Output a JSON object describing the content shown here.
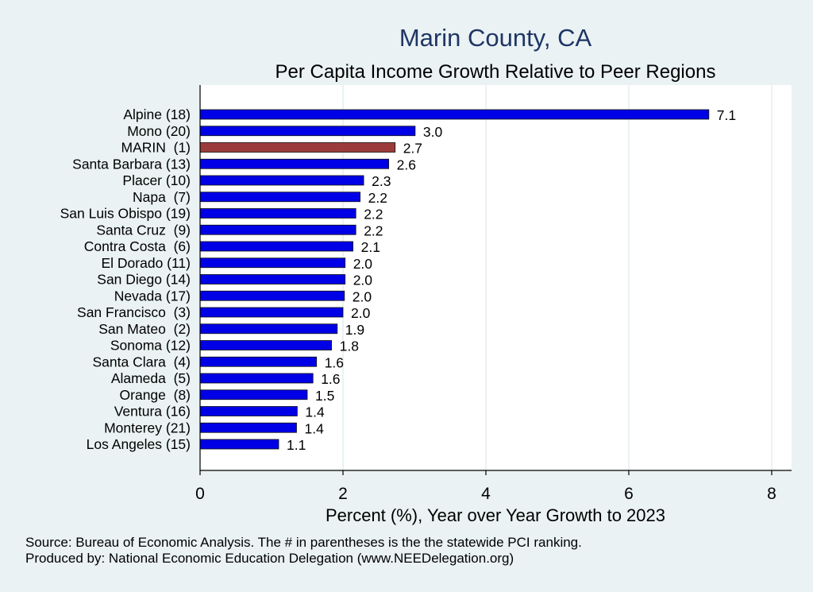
{
  "chart_data": {
    "type": "bar",
    "orientation": "horizontal",
    "title": "Marin County, CA",
    "subtitle": "Per Capita Income Growth Relative to Peer Regions",
    "xlabel": "Percent (%), Year over Year Growth to 2023",
    "ylabel": "",
    "xlim": [
      0,
      8.3
    ],
    "xticks": [
      0,
      2,
      4,
      6,
      8
    ],
    "grid": true,
    "categories": [
      "Alpine (18)",
      "Mono (20)",
      "MARIN  (1)",
      "Santa Barbara (13)",
      "Placer (10)",
      "Napa  (7)",
      "San Luis Obispo (19)",
      "Santa Cruz  (9)",
      "Contra Costa  (6)",
      "El Dorado (11)",
      "San Diego (14)",
      "Nevada (17)",
      "San Francisco  (3)",
      "San Mateo  (2)",
      "Sonoma (12)",
      "Santa Clara  (4)",
      "Alameda  (5)",
      "Orange  (8)",
      "Ventura (16)",
      "Monterey (21)",
      "Los Angeles (15)"
    ],
    "values": [
      7.12,
      3.01,
      2.73,
      2.64,
      2.29,
      2.24,
      2.18,
      2.18,
      2.14,
      2.03,
      2.03,
      2.02,
      2.0,
      1.92,
      1.84,
      1.63,
      1.58,
      1.5,
      1.36,
      1.35,
      1.1
    ],
    "value_labels": [
      "7.1",
      "3.0",
      "2.7",
      "2.6",
      "2.3",
      "2.2",
      "2.2",
      "2.2",
      "2.1",
      "2.0",
      "2.0",
      "2.0",
      "2.0",
      "1.9",
      "1.8",
      "1.6",
      "1.6",
      "1.5",
      "1.4",
      "1.4",
      "1.1"
    ],
    "highlight_index": 2,
    "colors": {
      "bar": "#0000e6",
      "highlight": "#9b3b3b",
      "background": "#eaf2f3",
      "plot_background": "#ffffff",
      "title": "#1f3564",
      "grid": "#e4eef0"
    }
  },
  "footer": {
    "source": "Source: Bureau of Economic Analysis. The # in parentheses is the the statewide PCI ranking.",
    "produced": "Produced by: National Economic Education Delegation (www.NEEDelegation.org)"
  }
}
